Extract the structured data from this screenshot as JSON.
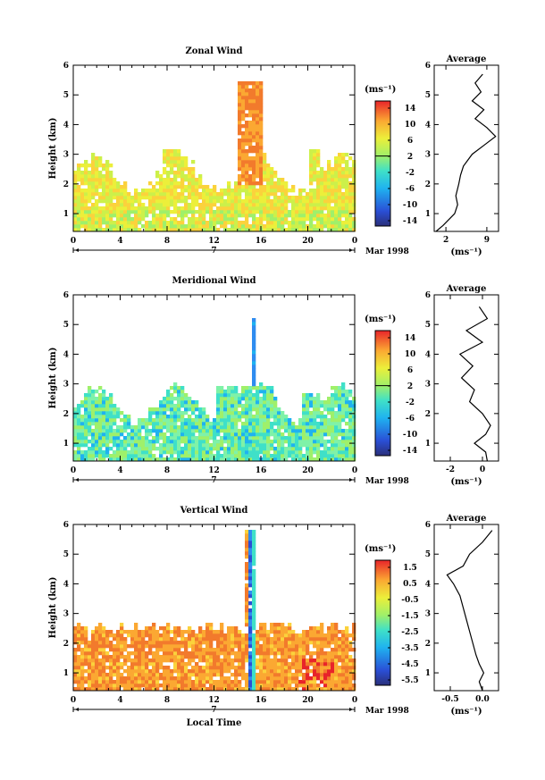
{
  "panels": [
    {
      "title": "Zonal Wind",
      "ylabel": "Height (km)",
      "unit_label": "(ms⁻¹)",
      "x_ticks": [
        "0",
        "4",
        "8",
        "12",
        "16",
        "20",
        "0"
      ],
      "y_ticks": [
        "1",
        "2",
        "3",
        "4",
        "5",
        "6"
      ],
      "date_day": "7",
      "date_label": "Mar 1998",
      "xlabel": "",
      "colorbar_ticks": [
        "14",
        "10",
        "6",
        "2",
        "-2",
        "-6",
        "-10",
        "-14"
      ],
      "avg_title": "Average",
      "avg_x_ticks": [
        "2",
        "9"
      ],
      "avg_unit": "(ms⁻¹)",
      "average_profile": {
        "xlim": [
          0,
          11
        ],
        "height_km": [
          0.4,
          0.6,
          0.8,
          1.0,
          1.3,
          1.6,
          2.0,
          2.3,
          2.6,
          3.0,
          3.3,
          3.6,
          3.9,
          4.2,
          4.5,
          4.8,
          5.1,
          5.4,
          5.7
        ],
        "value": [
          0.3,
          1.5,
          2.5,
          3.5,
          4.0,
          3.7,
          4.2,
          4.5,
          5.0,
          6.5,
          8.5,
          10.5,
          9.0,
          7.0,
          8.5,
          6.5,
          8.0,
          7.0,
          8.3
        ]
      }
    },
    {
      "title": "Meridional Wind",
      "ylabel": "Height (km)",
      "unit_label": "(ms⁻¹)",
      "x_ticks": [
        "0",
        "4",
        "8",
        "12",
        "16",
        "20",
        "0"
      ],
      "y_ticks": [
        "1",
        "2",
        "3",
        "4",
        "5",
        "6"
      ],
      "date_day": "7",
      "date_label": "Mar 1998",
      "xlabel": "",
      "colorbar_ticks": [
        "14",
        "10",
        "6",
        "2",
        "-2",
        "-6",
        "-10",
        "-14"
      ],
      "avg_title": "Average",
      "avg_x_ticks": [
        "-2",
        "0"
      ],
      "avg_unit": "(ms⁻¹)",
      "average_profile": {
        "xlim": [
          -3,
          1
        ],
        "height_km": [
          0.4,
          0.7,
          1.0,
          1.3,
          1.6,
          2.0,
          2.4,
          2.8,
          3.2,
          3.6,
          4.0,
          4.4,
          4.8,
          5.2,
          5.6
        ],
        "value": [
          0.3,
          0.2,
          -0.5,
          0.2,
          0.5,
          0.0,
          -0.8,
          -0.5,
          -1.3,
          -0.6,
          -1.4,
          0.0,
          -1.0,
          0.3,
          -0.2
        ]
      }
    },
    {
      "title": "Vertical Wind",
      "ylabel": "Height (km)",
      "unit_label": "(ms⁻¹)",
      "x_ticks": [
        "0",
        "4",
        "8",
        "12",
        "16",
        "20",
        "0"
      ],
      "y_ticks": [
        "1",
        "2",
        "3",
        "4",
        "5",
        "6"
      ],
      "date_day": "7",
      "date_label": "Mar 1998",
      "xlabel": "Local Time",
      "colorbar_ticks": [
        "1.5",
        "0.5",
        "-0.5",
        "-1.5",
        "-2.5",
        "-3.5",
        "-4.5",
        "-5.5"
      ],
      "avg_title": "Average",
      "avg_x_ticks": [
        "-0.5",
        "0.0"
      ],
      "avg_unit": "(ms⁻¹)",
      "average_profile": {
        "xlim": [
          -0.75,
          0.25
        ],
        "height_km": [
          0.4,
          0.7,
          1.0,
          1.3,
          1.6,
          2.0,
          2.4,
          2.8,
          3.2,
          3.6,
          4.0,
          4.3,
          4.6,
          5.0,
          5.4,
          5.8
        ],
        "value": [
          0.0,
          -0.05,
          0.02,
          -0.05,
          -0.1,
          -0.15,
          -0.2,
          -0.25,
          -0.3,
          -0.35,
          -0.45,
          -0.55,
          -0.3,
          -0.2,
          0.0,
          0.15
        ]
      }
    }
  ],
  "chart_data": [
    {
      "type": "heatmap",
      "title": "Zonal Wind",
      "xlabel": "",
      "ylabel": "Height (km)",
      "xlim": [
        0,
        24
      ],
      "ylim": [
        0.4,
        6
      ],
      "colorbar_range": [
        -16,
        16
      ],
      "colorbar_unit": "ms-1"
    },
    {
      "type": "heatmap",
      "title": "Meridional Wind",
      "xlabel": "",
      "ylabel": "Height (km)",
      "xlim": [
        0,
        24
      ],
      "ylim": [
        0.4,
        6
      ],
      "colorbar_range": [
        -16,
        16
      ],
      "colorbar_unit": "ms-1"
    },
    {
      "type": "heatmap",
      "title": "Vertical Wind",
      "xlabel": "Local Time",
      "ylabel": "Height (km)",
      "xlim": [
        0,
        24
      ],
      "ylim": [
        0.4,
        6
      ],
      "colorbar_range": [
        -6,
        2
      ],
      "colorbar_unit": "ms-1"
    },
    {
      "type": "line",
      "title": "Average",
      "xlabel": "(ms-1)",
      "ylabel": "",
      "xlim": [
        0,
        11
      ],
      "ylim": [
        0.4,
        6
      ],
      "x": [
        0.3,
        1.5,
        2.5,
        3.5,
        4.0,
        3.7,
        4.2,
        4.5,
        5.0,
        6.5,
        8.5,
        10.5,
        9.0,
        7.0,
        8.5,
        6.5,
        8.0,
        7.0,
        8.3
      ],
      "y": [
        0.4,
        0.6,
        0.8,
        1.0,
        1.3,
        1.6,
        2.0,
        2.3,
        2.6,
        3.0,
        3.3,
        3.6,
        3.9,
        4.2,
        4.5,
        4.8,
        5.1,
        5.4,
        5.7
      ]
    },
    {
      "type": "line",
      "title": "Average",
      "xlabel": "(ms-1)",
      "ylabel": "",
      "xlim": [
        -3,
        1
      ],
      "ylim": [
        0.4,
        6
      ],
      "x": [
        0.3,
        0.2,
        -0.5,
        0.2,
        0.5,
        0.0,
        -0.8,
        -0.5,
        -1.3,
        -0.6,
        -1.4,
        0.0,
        -1.0,
        0.3,
        -0.2
      ],
      "y": [
        0.4,
        0.7,
        1.0,
        1.3,
        1.6,
        2.0,
        2.4,
        2.8,
        3.2,
        3.6,
        4.0,
        4.4,
        4.8,
        5.2,
        5.6
      ]
    },
    {
      "type": "line",
      "title": "Average",
      "xlabel": "(ms-1)",
      "ylabel": "",
      "xlim": [
        -0.75,
        0.25
      ],
      "ylim": [
        0.4,
        6
      ],
      "x": [
        0.0,
        -0.05,
        0.02,
        -0.05,
        -0.1,
        -0.15,
        -0.2,
        -0.25,
        -0.3,
        -0.35,
        -0.45,
        -0.55,
        -0.3,
        -0.2,
        0.0,
        0.15
      ],
      "y": [
        0.4,
        0.7,
        1.0,
        1.3,
        1.6,
        2.0,
        2.4,
        2.8,
        3.2,
        3.6,
        4.0,
        4.3,
        4.6,
        5.0,
        5.4,
        5.8
      ]
    }
  ]
}
